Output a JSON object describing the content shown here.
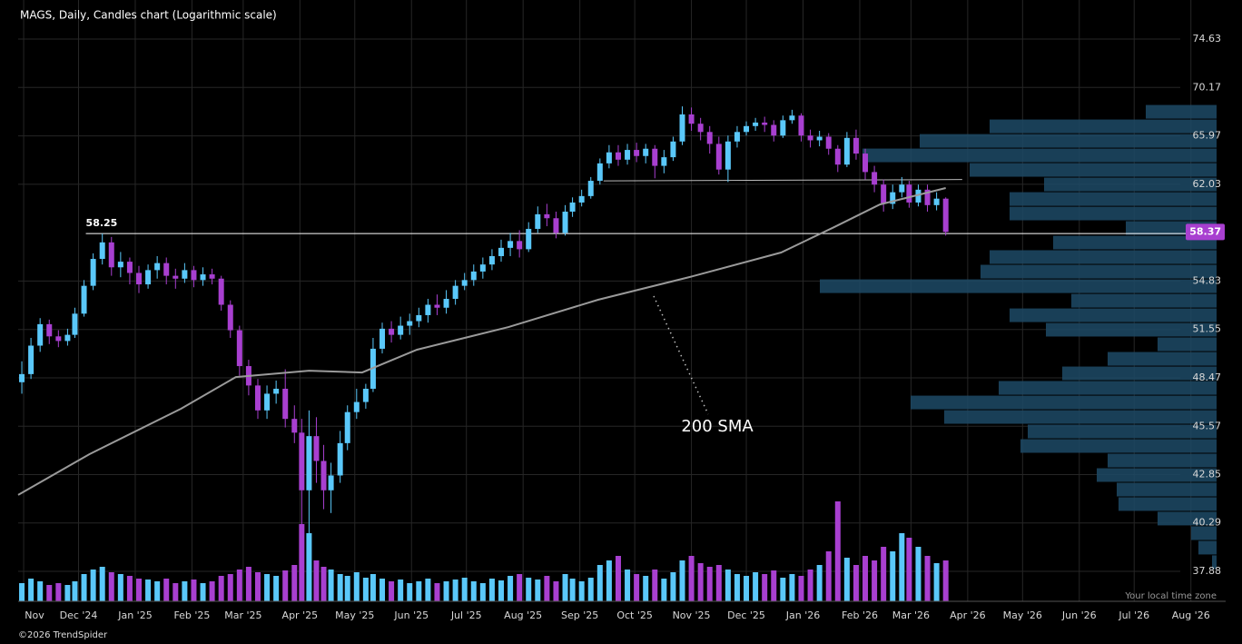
{
  "chart_data": {
    "type": "candlestick",
    "title": "MAGS, Daily, Candles chart (Logarithmic scale)",
    "footer": "©2026 TrendSpider",
    "time_zone_note": "Your local time zone",
    "log_scale": true,
    "grid": true,
    "up_color": "#5ac8fa",
    "down_color": "#a83fd0",
    "xlim": [
      -3,
      657
    ],
    "ylim": [
      36.46,
      78.44
    ],
    "yticks": [
      74.63,
      70.17,
      65.97,
      62.03,
      54.83,
      51.55,
      48.47,
      45.57,
      42.85,
      40.29,
      37.88
    ],
    "xticks": [
      {
        "value": 0,
        "label": "Nov"
      },
      {
        "value": 30,
        "label": "Dec '24"
      },
      {
        "value": 61,
        "label": "Jan '25"
      },
      {
        "value": 92,
        "label": "Feb '25"
      },
      {
        "value": 120,
        "label": "Mar '25"
      },
      {
        "value": 151,
        "label": "Apr '25"
      },
      {
        "value": 181,
        "label": "May '25"
      },
      {
        "value": 212,
        "label": "Jun '25"
      },
      {
        "value": 242,
        "label": "Jul '25"
      },
      {
        "value": 273,
        "label": "Aug '25"
      },
      {
        "value": 304,
        "label": "Sep '25"
      },
      {
        "value": 334,
        "label": "Oct '25"
      },
      {
        "value": 365,
        "label": "Nov '25"
      },
      {
        "value": 395,
        "label": "Dec '25"
      },
      {
        "value": 426,
        "label": "Jan '26"
      },
      {
        "value": 457,
        "label": "Feb '26"
      },
      {
        "value": 485,
        "label": "Mar '26"
      },
      {
        "value": 516,
        "label": "Apr '26"
      },
      {
        "value": 546,
        "label": "May '26"
      },
      {
        "value": 577,
        "label": "Jun '26"
      },
      {
        "value": 607,
        "label": "Jul '26"
      },
      {
        "value": 638,
        "label": "Aug '26"
      }
    ],
    "x": [
      -1,
      4,
      9,
      14,
      19,
      24,
      28,
      33,
      38,
      43,
      48,
      53,
      58,
      63,
      68,
      73,
      78,
      83,
      88,
      93,
      98,
      103,
      108,
      113,
      118,
      123,
      128,
      133,
      138,
      143,
      148,
      152,
      156,
      160,
      164,
      168,
      173,
      177,
      182,
      187,
      191,
      196,
      201,
      206,
      211,
      216,
      221,
      226,
      231,
      236,
      241,
      246,
      251,
      256,
      261,
      266,
      271,
      276,
      281,
      286,
      291,
      296,
      300,
      305,
      310,
      315,
      320,
      325,
      330,
      335,
      340,
      345,
      350,
      355,
      360,
      365,
      370,
      375,
      380,
      385,
      390,
      395,
      400,
      405,
      410,
      415,
      420,
      425,
      430,
      435,
      440,
      445,
      450,
      455,
      460,
      465,
      470,
      475,
      480,
      484,
      489,
      494,
      499,
      504
    ],
    "open": [
      48.2,
      48.7,
      50.5,
      51.9,
      51.1,
      50.8,
      51.2,
      52.6,
      54.5,
      56.4,
      57.6,
      55.8,
      56.2,
      55.4,
      54.6,
      55.6,
      56.1,
      55.2,
      55.0,
      55.6,
      54.9,
      55.3,
      55.0,
      53.2,
      51.5,
      49.2,
      48.0,
      46.5,
      47.5,
      47.8,
      46.0,
      45.2,
      42.0,
      45.0,
      43.6,
      42.0,
      42.8,
      44.6,
      46.4,
      47.0,
      47.8,
      50.3,
      51.6,
      51.2,
      51.8,
      52.1,
      52.5,
      53.2,
      53.0,
      53.6,
      54.5,
      54.9,
      55.5,
      56.0,
      56.6,
      57.2,
      57.7,
      57.1,
      58.6,
      59.7,
      59.4,
      58.3,
      59.9,
      60.6,
      61.1,
      62.3,
      63.7,
      64.6,
      64.0,
      64.8,
      64.3,
      64.9,
      63.5,
      64.2,
      65.5,
      67.8,
      67.0,
      66.3,
      65.3,
      63.2,
      65.5,
      66.3,
      66.8,
      67.1,
      66.9,
      66.0,
      67.3,
      67.7,
      66.0,
      65.6,
      65.9,
      64.9,
      63.6,
      65.8,
      64.5,
      63.0,
      62.0,
      60.5,
      61.4,
      62.0,
      60.6,
      61.6,
      60.4,
      60.9
    ],
    "high": [
      49.5,
      51.0,
      52.3,
      52.2,
      51.5,
      51.6,
      53.0,
      54.9,
      56.8,
      58.25,
      58.0,
      56.9,
      56.5,
      55.9,
      56.0,
      56.6,
      56.5,
      55.7,
      56.1,
      55.9,
      55.8,
      55.7,
      55.2,
      53.5,
      51.8,
      49.6,
      48.4,
      48.0,
      48.3,
      49.0,
      46.8,
      46.0,
      46.5,
      46.1,
      44.5,
      43.5,
      45.3,
      46.8,
      47.8,
      48.1,
      51.0,
      52.0,
      52.1,
      52.4,
      52.6,
      53.0,
      53.6,
      53.9,
      54.2,
      54.9,
      55.4,
      56.0,
      56.5,
      57.1,
      57.8,
      58.3,
      58.5,
      59.1,
      60.3,
      60.5,
      59.9,
      60.4,
      61.0,
      61.6,
      62.6,
      64.1,
      65.2,
      65.2,
      65.3,
      65.4,
      65.3,
      65.2,
      64.8,
      65.9,
      68.5,
      68.4,
      67.5,
      66.8,
      65.9,
      66.0,
      66.8,
      67.2,
      67.5,
      67.6,
      67.3,
      67.7,
      68.2,
      67.9,
      66.5,
      66.4,
      66.2,
      65.2,
      66.3,
      66.5,
      64.9,
      63.5,
      62.4,
      62.0,
      62.6,
      62.3,
      62.0,
      62.0,
      61.4,
      61.0
    ],
    "low": [
      47.5,
      48.4,
      50.1,
      50.6,
      50.4,
      50.5,
      51.0,
      52.4,
      54.2,
      56.0,
      55.2,
      55.1,
      54.6,
      54.0,
      54.3,
      55.0,
      54.6,
      54.3,
      54.7,
      54.4,
      54.5,
      54.6,
      52.8,
      51.0,
      48.6,
      47.4,
      46.0,
      46.0,
      46.9,
      45.5,
      44.6,
      39.5,
      38.5,
      42.4,
      41.0,
      40.8,
      42.4,
      44.2,
      46.0,
      46.6,
      47.6,
      50.0,
      50.7,
      50.9,
      51.2,
      51.7,
      52.0,
      52.5,
      52.6,
      53.2,
      54.2,
      54.5,
      55.0,
      55.6,
      56.2,
      56.6,
      56.5,
      56.9,
      58.3,
      58.8,
      57.9,
      58.1,
      59.5,
      60.3,
      60.9,
      62.0,
      63.3,
      63.5,
      63.6,
      63.8,
      63.7,
      62.5,
      62.9,
      63.9,
      65.2,
      66.4,
      65.6,
      64.5,
      62.8,
      62.2,
      65.0,
      66.0,
      66.4,
      66.3,
      65.5,
      65.8,
      67.0,
      65.5,
      65.0,
      65.1,
      64.4,
      63.0,
      63.4,
      64.0,
      62.4,
      61.4,
      59.9,
      60.1,
      61.0,
      60.2,
      60.3,
      59.9,
      60.0,
      58.1
    ],
    "close": [
      48.7,
      50.5,
      51.9,
      51.1,
      50.8,
      51.2,
      52.6,
      54.5,
      56.4,
      57.6,
      55.8,
      56.2,
      55.4,
      54.6,
      55.6,
      56.1,
      55.2,
      55.0,
      55.6,
      54.9,
      55.3,
      55.0,
      53.2,
      51.5,
      49.2,
      48.0,
      46.5,
      47.5,
      47.8,
      46.0,
      45.2,
      42.0,
      45.0,
      43.6,
      42.0,
      42.8,
      44.6,
      46.4,
      47.0,
      47.8,
      50.3,
      51.6,
      51.2,
      51.8,
      52.1,
      52.5,
      53.2,
      53.0,
      53.6,
      54.5,
      54.9,
      55.5,
      56.0,
      56.6,
      57.2,
      57.7,
      57.1,
      58.6,
      59.7,
      59.4,
      58.3,
      59.9,
      60.6,
      61.1,
      62.3,
      63.7,
      64.6,
      64.0,
      64.8,
      64.3,
      64.9,
      63.5,
      64.2,
      65.5,
      67.8,
      67.0,
      66.3,
      65.3,
      63.2,
      65.5,
      66.3,
      66.8,
      67.1,
      66.9,
      66.0,
      67.3,
      67.7,
      66.0,
      65.6,
      65.9,
      64.9,
      63.6,
      65.8,
      64.5,
      63.0,
      62.0,
      60.5,
      61.4,
      62.0,
      60.6,
      61.6,
      60.4,
      60.9,
      58.37
    ],
    "volume": [
      20,
      25,
      22,
      18,
      20,
      18,
      22,
      30,
      35,
      38,
      32,
      30,
      28,
      25,
      24,
      22,
      25,
      20,
      22,
      24,
      20,
      22,
      28,
      30,
      35,
      38,
      32,
      30,
      28,
      34,
      40,
      85,
      75,
      45,
      38,
      35,
      30,
      28,
      32,
      26,
      30,
      25,
      22,
      24,
      20,
      22,
      25,
      20,
      22,
      24,
      26,
      22,
      20,
      25,
      23,
      28,
      30,
      26,
      24,
      28,
      22,
      30,
      25,
      22,
      26,
      40,
      45,
      50,
      35,
      30,
      28,
      35,
      25,
      32,
      45,
      50,
      42,
      38,
      40,
      35,
      30,
      28,
      32,
      30,
      34,
      26,
      30,
      28,
      35,
      40,
      55,
      110,
      48,
      40,
      50,
      45,
      60,
      55,
      75,
      70,
      60,
      50,
      42,
      45
    ],
    "last_price": 58.37,
    "sma": {
      "name": "200 SMA",
      "color": "#9a9a9a",
      "x": [
        -3,
        36,
        86,
        116,
        156,
        185,
        215,
        265,
        314,
        364,
        414,
        443,
        468,
        504
      ],
      "values": [
        41.75,
        43.98,
        46.6,
        48.52,
        48.91,
        48.8,
        50.24,
        51.71,
        53.54,
        55.11,
        56.86,
        58.73,
        60.45,
        61.73
      ]
    },
    "level_lines": [
      {
        "x": [
          34,
          639
        ],
        "values": [
          58.25,
          58.25
        ],
        "label": 58.25
      },
      {
        "x": [
          317,
          513
        ],
        "values": [
          62.3,
          62.4
        ]
      }
    ],
    "profile": {
      "color": "#1d4a66",
      "bins": [
        37.97,
        38.68,
        39.4,
        40.14,
        40.89,
        41.65,
        42.43,
        43.22,
        44.03,
        44.85,
        45.69,
        46.54,
        47.41,
        48.3,
        49.2,
        50.12,
        51.06,
        52.01,
        52.98,
        53.97,
        54.98,
        56.01,
        57.06,
        58.12,
        59.21,
        60.31,
        61.44,
        62.59,
        63.76,
        64.95,
        66.16,
        67.4,
        68.66
      ],
      "values": [
        5,
        20,
        28,
        65,
        108,
        110,
        132,
        120,
        216,
        208,
        300,
        337,
        240,
        170,
        120,
        65,
        188,
        228,
        160,
        437,
        260,
        250,
        180,
        100,
        228,
        228,
        190,
        272,
        390,
        327,
        250,
        78
      ]
    }
  }
}
